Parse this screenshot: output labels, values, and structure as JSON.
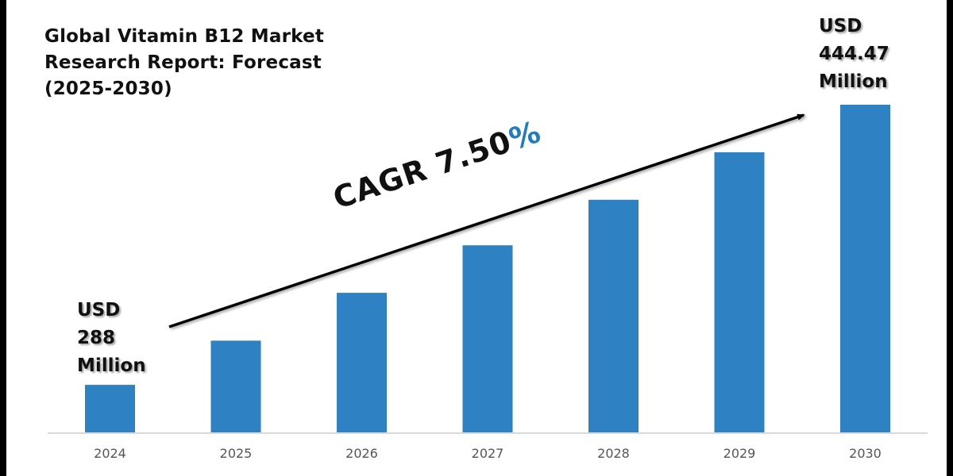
{
  "title_lines": [
    "Global Vitamin B12 Market",
    "Research Report: Forecast",
    "(2025-2030)"
  ],
  "annotations": {
    "start": {
      "lines": [
        "USD",
        "288",
        "Million"
      ]
    },
    "end": {
      "lines": [
        "USD",
        "444.47",
        "Million"
      ]
    }
  },
  "cagr": {
    "label": "CAGR 7.50",
    "percent_sign": "%"
  },
  "colors": {
    "bar": "#2e81c3",
    "percent": "#1f7bc4",
    "arrow": "#000000",
    "axis": "#d9d9d9"
  },
  "chart_data": {
    "type": "bar",
    "title": "Global Vitamin B12 Market Research Report: Forecast (2025-2030)",
    "xlabel": "",
    "ylabel": "",
    "categories": [
      "2024",
      "2025",
      "2026",
      "2027",
      "2028",
      "2029",
      "2030"
    ],
    "values": [
      0.145,
      0.28,
      0.426,
      0.571,
      0.71,
      0.855,
      1.0
    ],
    "value_note": "Relative bar height (fraction of 2030 bar); only endpoints labeled",
    "labeled_values": {
      "2024": "USD 288 Million",
      "2030": "USD 444.47 Million"
    },
    "ylim": [
      0,
      1
    ],
    "grid": false,
    "legend": "none",
    "annotations": [
      "CAGR 7.50%",
      "trend arrow from 2024 to 2030"
    ]
  }
}
